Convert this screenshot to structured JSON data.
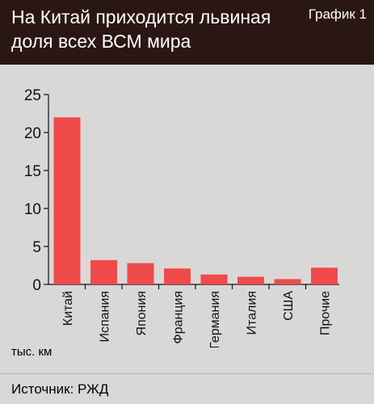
{
  "header": {
    "title": "На Китай приходится львиная доля всех ВСМ мира",
    "graph_label": "График 1"
  },
  "footer": {
    "source": "Источник: РЖД"
  },
  "colors": {
    "header_bg": "#2a1713",
    "page_bg": "#d9d8d7",
    "bar": "#f04a4a",
    "axis": "#111111"
  },
  "chart_data": {
    "type": "bar",
    "categories": [
      "Китай",
      "Испания",
      "Япония",
      "Франция",
      "Германия",
      "Италия",
      "США",
      "Прочие"
    ],
    "values": [
      22,
      3.2,
      2.8,
      2.1,
      1.3,
      1.0,
      0.7,
      2.2
    ],
    "ylim": [
      0,
      25
    ],
    "yticks": [
      0,
      5,
      10,
      15,
      20,
      25
    ],
    "ylabel": "тыс. км",
    "grid": false
  }
}
